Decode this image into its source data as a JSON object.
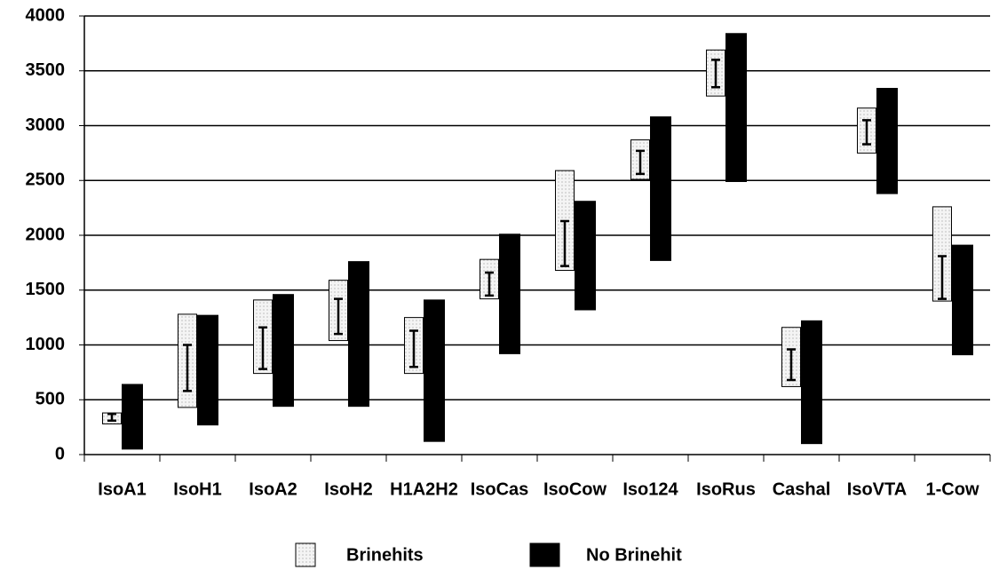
{
  "chart_data": {
    "type": "floating-bar",
    "categories": [
      "IsoA1",
      "IsoH1",
      "IsoA2",
      "IsoH2",
      "H1A2H2",
      "IsoCas",
      "IsoCow",
      "Iso124",
      "IsoRus",
      "Cashal",
      "IsoVTA",
      "1-Cow"
    ],
    "series": [
      {
        "name": "Brinehits",
        "color": "#f4f4f4",
        "low": [
          280,
          430,
          740,
          1040,
          740,
          1420,
          1680,
          2510,
          3270,
          620,
          2750,
          1400
        ],
        "high": [
          380,
          1280,
          1410,
          1590,
          1250,
          1780,
          2590,
          2870,
          3690,
          1160,
          3160,
          2260
        ],
        "error_low": [
          310,
          580,
          780,
          1100,
          800,
          1450,
          1720,
          2560,
          3350,
          680,
          2830,
          1420
        ],
        "error_high": [
          370,
          1000,
          1160,
          1420,
          1130,
          1660,
          2130,
          2770,
          3600,
          960,
          3050,
          1810
        ]
      },
      {
        "name": "No Brinehit",
        "color": "#000000",
        "low": [
          50,
          270,
          440,
          440,
          120,
          920,
          1320,
          1770,
          2490,
          100,
          2380,
          910
        ],
        "high": [
          640,
          1270,
          1460,
          1760,
          1410,
          2010,
          2310,
          3080,
          3840,
          1220,
          3340,
          1910
        ]
      }
    ],
    "ylim": [
      0,
      4000
    ],
    "yticks": [
      0,
      500,
      1000,
      1500,
      2000,
      2500,
      3000,
      3500,
      4000
    ],
    "grid": true,
    "legend": "bottom"
  }
}
